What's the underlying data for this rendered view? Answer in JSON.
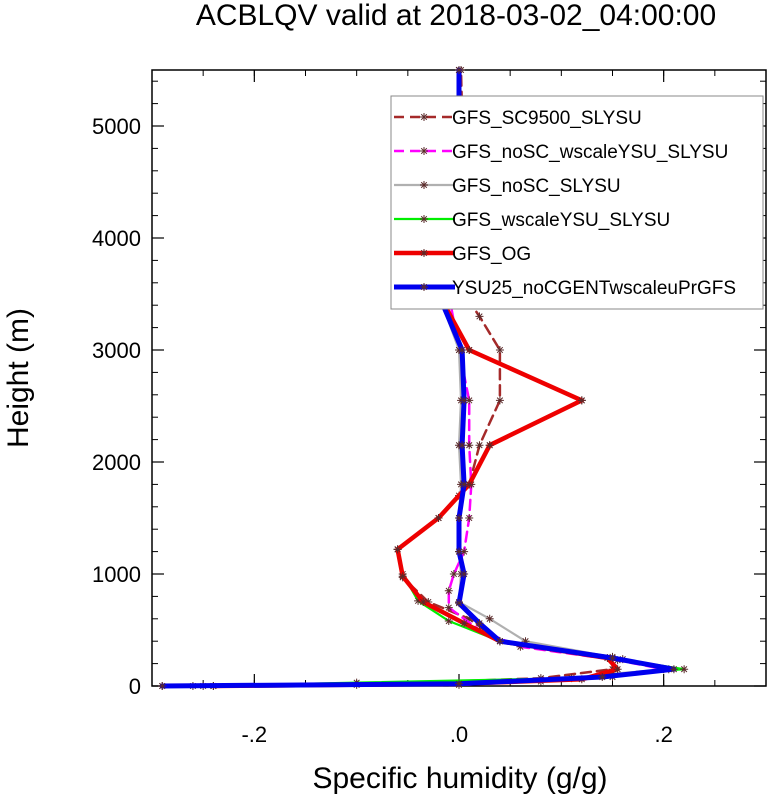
{
  "chart_data": {
    "type": "line",
    "title": "ACBLQV valid at 2018-03-02_04:00:00",
    "xlabel": "Specific humidity (g/g)",
    "ylabel": "Height (m)",
    "xlim": [
      -0.3,
      0.3
    ],
    "ylim": [
      0,
      5500
    ],
    "xticks": [
      -0.2,
      0.0,
      0.2
    ],
    "xtick_labels": [
      "-.2",
      ".0",
      ".2"
    ],
    "yticks": [
      0,
      1000,
      2000,
      3000,
      4000,
      5000
    ],
    "ytick_labels": [
      "0",
      "1000",
      "2000",
      "3000",
      "4000",
      "5000"
    ],
    "grid": false,
    "legend_position": "top-right",
    "series": [
      {
        "name": "GFS_SC9500_SLYSU",
        "color": "#a52a2a",
        "dash": "dashed",
        "points": [
          [
            -0.24,
            0
          ],
          [
            -0.1,
            10
          ],
          [
            0.08,
            70
          ],
          [
            0.15,
            150
          ],
          [
            0.15,
            260
          ],
          [
            0.04,
            400
          ],
          [
            0.01,
            600
          ],
          [
            -0.03,
            750
          ],
          [
            -0.055,
            970
          ],
          [
            -0.06,
            1220
          ],
          [
            -0.02,
            1500
          ],
          [
            0.0,
            1700
          ],
          [
            0.01,
            1800
          ],
          [
            0.02,
            2150
          ],
          [
            0.04,
            2550
          ],
          [
            0.04,
            3000
          ],
          [
            0.02,
            3300
          ],
          [
            0.005,
            3500
          ],
          [
            0.005,
            4050
          ],
          [
            0.003,
            4650
          ],
          [
            0.003,
            5100
          ],
          [
            0.002,
            5500
          ]
        ]
      },
      {
        "name": "GFS_noSC_wscaleYSU_SLYSU",
        "color": "#ff00ff",
        "dash": "dashed",
        "points": [
          [
            -0.26,
            0
          ],
          [
            0.0,
            10
          ],
          [
            0.15,
            80
          ],
          [
            0.2,
            150
          ],
          [
            0.155,
            230
          ],
          [
            0.06,
            350
          ],
          [
            0.02,
            500
          ],
          [
            -0.01,
            700
          ],
          [
            -0.01,
            850
          ],
          [
            -0.005,
            1000
          ],
          [
            0.005,
            1200
          ],
          [
            0.01,
            1500
          ],
          [
            0.012,
            1800
          ],
          [
            0.01,
            2150
          ],
          [
            0.01,
            2550
          ],
          [
            0.0,
            3000
          ],
          [
            -0.01,
            3500
          ],
          [
            -0.005,
            3850
          ],
          [
            0.0,
            4300
          ],
          [
            0.0,
            4650
          ],
          [
            0.0,
            5000
          ],
          [
            0.0,
            5500
          ]
        ]
      },
      {
        "name": "GFS_noSC_SLYSU",
        "color": "#b0b0b0",
        "dash": "solid",
        "points": [
          [
            -0.29,
            0
          ],
          [
            -0.25,
            0
          ],
          [
            0.08,
            40
          ],
          [
            0.15,
            110
          ],
          [
            0.205,
            150
          ],
          [
            0.16,
            240
          ],
          [
            0.065,
            400
          ],
          [
            0.03,
            600
          ],
          [
            0.0,
            750
          ],
          [
            0.002,
            1000
          ],
          [
            0.0,
            1200
          ],
          [
            0.0,
            1500
          ],
          [
            0.002,
            1800
          ],
          [
            0.0,
            2150
          ],
          [
            0.002,
            2550
          ],
          [
            0.0,
            3000
          ],
          [
            -0.02,
            3500
          ],
          [
            0.0,
            3900
          ],
          [
            0.0,
            4300
          ],
          [
            0.0,
            5500
          ]
        ]
      },
      {
        "name": "GFS_wscaleYSU_SLYSU",
        "color": "#00ee00",
        "dash": "solid",
        "points": [
          [
            -0.24,
            0
          ],
          [
            -0.1,
            30
          ],
          [
            0.11,
            70
          ],
          [
            0.22,
            150
          ],
          [
            0.15,
            250
          ],
          [
            0.04,
            400
          ],
          [
            -0.01,
            580
          ],
          [
            -0.04,
            760
          ],
          [
            -0.055,
            1000
          ],
          [
            -0.06,
            1220
          ],
          [
            -0.02,
            1500
          ],
          [
            0.01,
            1800
          ],
          [
            0.03,
            2150
          ],
          [
            0.12,
            2550
          ],
          [
            0.01,
            3000
          ],
          [
            -0.02,
            3500
          ],
          [
            -0.005,
            3900
          ],
          [
            0.0,
            4300
          ],
          [
            0.0,
            5500
          ]
        ]
      },
      {
        "name": "GFS_OG",
        "color": "#ee0000",
        "dash": "solid",
        "points": [
          [
            -0.24,
            0
          ],
          [
            0.0,
            20
          ],
          [
            0.12,
            60
          ],
          [
            0.155,
            150
          ],
          [
            0.145,
            250
          ],
          [
            0.04,
            400
          ],
          [
            0.005,
            560
          ],
          [
            -0.035,
            750
          ],
          [
            -0.055,
            980
          ],
          [
            -0.06,
            1220
          ],
          [
            -0.02,
            1500
          ],
          [
            0.01,
            1800
          ],
          [
            0.03,
            2150
          ],
          [
            0.12,
            2550
          ],
          [
            0.01,
            3000
          ],
          [
            -0.02,
            3500
          ],
          [
            -0.005,
            3900
          ],
          [
            0.0,
            4300
          ],
          [
            0.0,
            5500
          ]
        ]
      },
      {
        "name": "YSU25_noCGENTwscaleuPrGFS",
        "color": "#0000ee",
        "dash": "solid",
        "points": [
          [
            -0.29,
            0
          ],
          [
            0.0,
            20
          ],
          [
            0.14,
            80
          ],
          [
            0.21,
            150
          ],
          [
            0.15,
            250
          ],
          [
            0.04,
            400
          ],
          [
            0.02,
            560
          ],
          [
            0.0,
            740
          ],
          [
            0.005,
            1000
          ],
          [
            0.0,
            1200
          ],
          [
            0.0,
            1500
          ],
          [
            0.005,
            1800
          ],
          [
            0.003,
            2150
          ],
          [
            0.005,
            2550
          ],
          [
            0.003,
            3000
          ],
          [
            -0.02,
            3500
          ],
          [
            -0.005,
            3900
          ],
          [
            0.0,
            4300
          ],
          [
            0.0,
            5500
          ]
        ]
      }
    ]
  }
}
